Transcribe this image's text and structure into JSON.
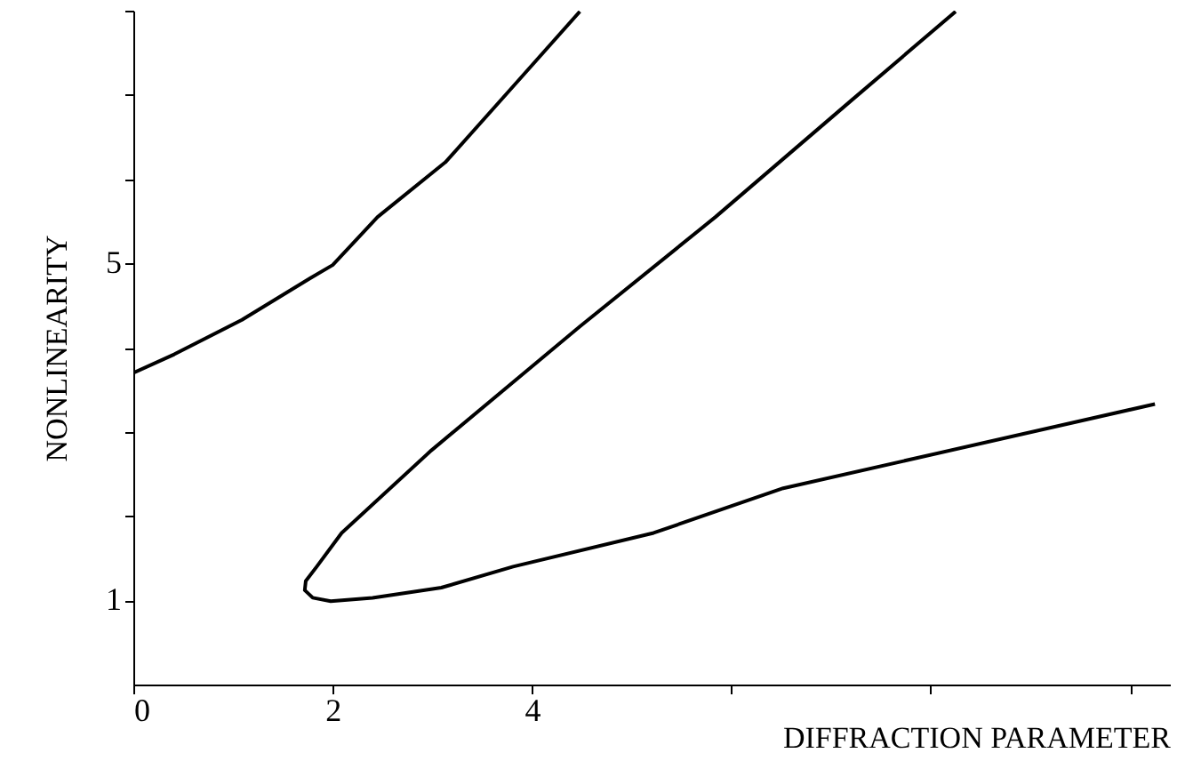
{
  "chart_data": {
    "type": "line",
    "xlabel": "DIFFRACTION PARAMETER",
    "ylabel": "NONLINEARITY",
    "xlim": [
      0,
      10.4
    ],
    "ylim": [
      0,
      8
    ],
    "xticks": [
      0,
      2,
      4,
      {
        "value": 6,
        "label": null
      },
      {
        "value": 8,
        "label": null
      },
      {
        "value": 10,
        "label": null
      }
    ],
    "yticks": [
      1,
      {
        "value": 2,
        "label": null
      },
      {
        "value": 3,
        "label": null
      },
      {
        "value": 4,
        "label": null
      },
      5,
      {
        "value": 6,
        "label": null
      },
      {
        "value": 7,
        "label": null
      },
      {
        "value": 8,
        "label": null
      }
    ],
    "grid": false,
    "series": [
      {
        "color": "#000000",
        "x": [
          0,
          0.41,
          1.09,
          1.77,
          2.0,
          2.45,
          3.13,
          3.81,
          4.48
        ],
        "values": [
          3.7,
          3.92,
          4.33,
          4.82,
          4.98,
          5.55,
          6.2,
          7.1,
          7.99
        ]
      },
      {
        "color": "#000000",
        "x": [
          8.25,
          7.2,
          5.84,
          4.48,
          2.99,
          2.09,
          1.84,
          1.73,
          1.72,
          1.8,
          1.98,
          2.4,
          3.09,
          3.81,
          5.22,
          6.52,
          10.25
        ],
        "values": [
          7.99,
          6.93,
          5.55,
          4.25,
          2.78,
          1.8,
          1.4,
          1.23,
          1.12,
          1.03,
          0.99,
          1.03,
          1.15,
          1.4,
          1.8,
          2.33,
          3.33
        ]
      }
    ]
  }
}
